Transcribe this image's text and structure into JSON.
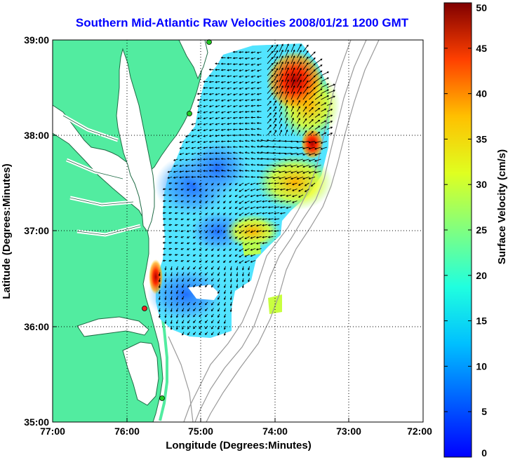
{
  "title": "Southern Mid-Atlantic Raw Velocities 2008/01/21 1200 GMT",
  "map": {
    "xlabel": "Longitude (Degrees:Minutes)",
    "ylabel": "Latitude (Degrees:Minutes)",
    "lon_range": [
      -77,
      -72
    ],
    "lat_range": [
      35,
      39
    ],
    "x_ticks": [
      "77:00",
      "76:00",
      "75:00",
      "74:00",
      "73:00",
      "72:00"
    ],
    "y_ticks": [
      "35:00",
      "36:00",
      "37:00",
      "38:00",
      "39:00"
    ],
    "grid": "dotted",
    "colors": {
      "land": "#52eca0",
      "water": "#ffffff",
      "coast": "#1f6b45",
      "bathymetry": "#9a9a9a",
      "station": "#22cc22",
      "station_active": "#ee2222"
    }
  },
  "colorbar": {
    "label": "Surface Velocity (cm/s)",
    "min": 0,
    "max": 50,
    "ticks": [
      "0",
      "5",
      "10",
      "15",
      "20",
      "25",
      "30",
      "35",
      "40",
      "45",
      "50"
    ],
    "colormap": "jet"
  }
}
